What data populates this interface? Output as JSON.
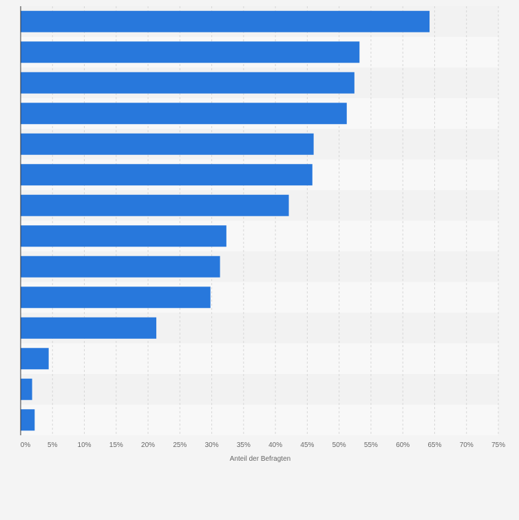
{
  "chart_data": {
    "type": "bar",
    "orientation": "horizontal",
    "categories": [
      "",
      "",
      "",
      "",
      "",
      "",
      "",
      "",
      "",
      "",
      "",
      "",
      "",
      ""
    ],
    "values": [
      64.2,
      53.2,
      52.4,
      51.2,
      46.0,
      45.8,
      42.1,
      32.3,
      31.3,
      29.8,
      21.3,
      4.4,
      1.8,
      2.2
    ],
    "xlabel": "Anteil der Befragten",
    "ylabel": "",
    "xlim": [
      0,
      75
    ],
    "xticks": [
      "0%",
      "5%",
      "10%",
      "15%",
      "20%",
      "25%",
      "30%",
      "35%",
      "40%",
      "45%",
      "50%",
      "55%",
      "60%",
      "65%",
      "70%",
      "75%"
    ],
    "grid": true,
    "legend": "none",
    "colors": {
      "bar": "#2878dc",
      "band_light": "#f8f8f8",
      "band_dark": "#f2f2f2",
      "grid": "#d6d6d6",
      "axis": "#333333",
      "tick_label": "#666666"
    }
  }
}
